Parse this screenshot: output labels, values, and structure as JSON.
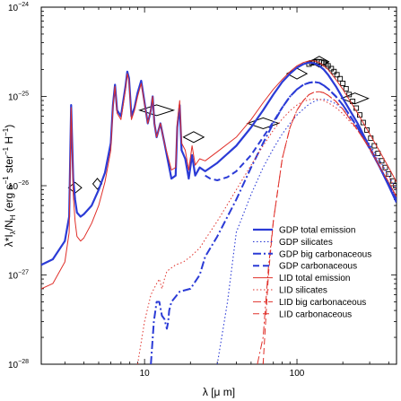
{
  "chart_data": {
    "type": "line",
    "xlabel": "λ [μ m]",
    "ylabel": "λ*I_λ/N_H (erg s⁻¹ ster⁻¹ H⁻¹)",
    "ylabel_parts": {
      "main": "λ*I",
      "sub1": "λ",
      "mid": "/N",
      "sub2": "H",
      "unit": " (erg s",
      "sup1": "−1",
      "unit2": " ster",
      "sup2": "−1",
      "unit3": " H",
      "sup3": "−1",
      "close": ")"
    },
    "xlabel_parts": {
      "main": "λ [μ m]"
    },
    "xscale": "log",
    "yscale": "log",
    "xlim": [
      2.1,
      450
    ],
    "ylim": [
      1e-28,
      1e-24
    ],
    "x_ticks": [
      {
        "value": 10,
        "label": "10"
      },
      {
        "value": 100,
        "label": "100"
      }
    ],
    "y_ticks": [
      {
        "value": 1e-28,
        "base": "10",
        "exp": "−28"
      },
      {
        "value": 1e-27,
        "base": "10",
        "exp": "−27"
      },
      {
        "value": 1e-26,
        "base": "10",
        "exp": "−26"
      },
      {
        "value": 1e-25,
        "base": "10",
        "exp": "−25"
      },
      {
        "value": 1e-24,
        "base": "10",
        "exp": "−24"
      }
    ],
    "legend_position": "bottom-right",
    "series": [
      {
        "name": "GDP total emission",
        "color": "#2b3bd6",
        "style": "solid",
        "width": 2.2,
        "x": [
          2.1,
          2.5,
          3.0,
          3.2,
          3.3,
          3.35,
          3.4,
          3.5,
          3.6,
          3.8,
          4.0,
          4.5,
          5.0,
          5.5,
          6.0,
          6.2,
          6.4,
          6.6,
          7.0,
          7.5,
          7.7,
          7.9,
          8.2,
          8.6,
          9.0,
          9.5,
          10.5,
          11.0,
          11.3,
          11.6,
          12.0,
          12.7,
          13.5,
          15.0,
          16.0,
          16.4,
          17.0,
          17.5,
          18.5,
          19.5,
          20.5,
          21.5,
          23,
          25,
          30,
          40,
          50,
          60,
          70,
          80,
          90,
          100,
          110,
          120,
          130,
          140,
          150,
          160,
          180,
          200,
          250,
          300,
          350,
          400,
          450
        ],
        "y": [
          1.3e-27,
          1.5e-27,
          2.4e-27,
          4.5e-27,
          8e-26,
          3e-26,
          1.2e-26,
          7e-27,
          5e-27,
          4.5e-27,
          4.8e-27,
          6e-27,
          9e-27,
          1.4e-26,
          3e-26,
          8e-26,
          1.35e-25,
          7e-26,
          6e-26,
          1.3e-25,
          1.9e-25,
          1.6e-25,
          6e-26,
          7.5e-26,
          1.1e-25,
          1.5e-25,
          5e-26,
          7e-26,
          1e-25,
          5e-26,
          3.5e-26,
          5e-26,
          3e-26,
          1.2e-26,
          1.3e-26,
          4.5e-26,
          8e-26,
          2.5e-26,
          2e-26,
          1.2e-26,
          2.2e-26,
          1.3e-26,
          1.6e-26,
          1.45e-26,
          1.8e-26,
          2.8e-26,
          4.5e-26,
          7e-26,
          1.05e-25,
          1.45e-25,
          1.8e-25,
          2.1e-25,
          2.3e-25,
          2.4e-25,
          2.35e-25,
          2.2e-25,
          2e-25,
          1.75e-25,
          1.3e-25,
          9.5e-26,
          5e-26,
          2.7e-26,
          1.6e-26,
          1e-26,
          6.5e-27
        ]
      },
      {
        "name": "GDP silicates",
        "color": "#2b3bd6",
        "style": "dotted",
        "width": 1.1,
        "x": [
          30,
          35,
          40,
          50,
          60,
          70,
          80,
          90,
          100,
          110,
          120,
          130,
          140,
          150,
          160,
          180,
          200,
          250,
          300,
          350,
          400,
          450
        ],
        "y": [
          1e-28,
          5e-28,
          3e-27,
          8e-27,
          1.6e-26,
          2.6e-26,
          3.8e-26,
          5e-26,
          6.2e-26,
          7.2e-26,
          8.2e-26,
          8.8e-26,
          9.2e-26,
          9.3e-26,
          9.1e-26,
          8.3e-26,
          7.2e-26,
          4.6e-26,
          2.9e-26,
          1.9e-26,
          1.3e-26,
          9e-27
        ]
      },
      {
        "name": "GDP big carbonaceous",
        "color": "#2b3bd6",
        "style": "dashdot",
        "width": 2,
        "x": [
          11,
          11.5,
          12,
          12.5,
          13,
          13.5,
          14,
          14.3,
          14.5,
          15,
          17,
          20,
          23,
          25,
          30,
          40,
          50,
          60,
          70,
          80,
          90,
          100,
          110,
          120,
          130,
          140,
          150,
          160,
          180,
          200,
          250,
          300,
          350,
          400,
          450
        ],
        "y": [
          1e-28,
          3e-28,
          5e-28,
          5e-28,
          3.5e-28,
          3.2e-28,
          2.5e-28,
          3e-28,
          4e-28,
          5e-28,
          6.5e-28,
          7e-28,
          1e-27,
          1.6e-27,
          2.7e-27,
          7e-27,
          1.6e-26,
          3e-26,
          5e-26,
          7.5e-26,
          1e-25,
          1.2e-25,
          1.35e-25,
          1.42e-25,
          1.45e-25,
          1.42e-25,
          1.33e-25,
          1.22e-25,
          1e-25,
          8e-26,
          4.5e-26,
          2.6e-26,
          1.6e-26,
          1.05e-26,
          7e-27
        ]
      },
      {
        "name": "GDP carbonaceous",
        "color": "#2b3bd6",
        "style": "dashed",
        "width": 2,
        "x": [
          25,
          27,
          30,
          35,
          40,
          50,
          60,
          70,
          80,
          90,
          100,
          110,
          120,
          130,
          140,
          150,
          160,
          180,
          200,
          250,
          300,
          350,
          400,
          450
        ],
        "y": [
          1.3e-26,
          1.2e-26,
          1.15e-26,
          1.25e-26,
          1.45e-26,
          2.2e-26,
          3.5e-26,
          5.2e-26,
          7.5e-26,
          1e-25,
          1.2e-25,
          1.35e-25,
          1.42e-25,
          1.45e-25,
          1.42e-25,
          1.33e-25,
          1.22e-25,
          1e-25,
          8e-26,
          4.5e-26,
          2.6e-26,
          1.6e-26,
          1.05e-26,
          7e-27
        ]
      },
      {
        "name": "LID total emission",
        "color": "#e0302a",
        "style": "solid",
        "width": 1,
        "x": [
          2.1,
          2.5,
          3.0,
          3.2,
          3.3,
          3.35,
          3.4,
          3.5,
          3.6,
          3.8,
          4.0,
          4.5,
          5.0,
          5.5,
          6.0,
          6.2,
          6.4,
          6.6,
          7.0,
          7.5,
          7.7,
          7.9,
          8.2,
          8.6,
          9.0,
          9.5,
          10.5,
          11.0,
          11.3,
          11.6,
          12.0,
          12.7,
          13.5,
          15.0,
          16.0,
          16.4,
          17.0,
          17.5,
          18.5,
          19.5,
          20.5,
          21.5,
          23,
          25,
          30,
          40,
          50,
          60,
          70,
          80,
          90,
          100,
          110,
          120,
          130,
          140,
          150,
          160,
          180,
          200,
          250,
          300,
          350,
          400,
          450
        ],
        "y": [
          7e-28,
          8e-28,
          1.4e-27,
          3e-27,
          7.5e-26,
          2.5e-26,
          8e-27,
          4e-27,
          2.7e-27,
          2.4e-27,
          2.6e-27,
          3.8e-27,
          6e-27,
          1.1e-26,
          2.5e-26,
          7.5e-26,
          1.3e-25,
          6.5e-26,
          5.5e-26,
          1.2e-25,
          1.8e-25,
          1.5e-25,
          5.5e-26,
          7e-26,
          1e-25,
          1.4e-25,
          5e-26,
          7e-26,
          1e-25,
          5e-26,
          3.5e-26,
          5e-26,
          3e-26,
          1.5e-26,
          1.6e-26,
          5e-26,
          9e-26,
          3e-26,
          2.5e-26,
          1.5e-26,
          2.8e-26,
          1.7e-26,
          2e-26,
          1.9e-26,
          2.4e-26,
          3.5e-26,
          5.5e-26,
          8.5e-26,
          1.2e-25,
          1.55e-25,
          1.9e-25,
          2.2e-25,
          2.4e-25,
          2.5e-25,
          2.5e-25,
          2.4e-25,
          2.2e-25,
          2e-25,
          1.55e-25,
          1.2e-25,
          6.5e-26,
          3.8e-26,
          2.4e-26,
          1.6e-26,
          1.1e-26
        ]
      },
      {
        "name": "LID silicates",
        "color": "#e0302a",
        "style": "dotted",
        "width": 1,
        "x": [
          9,
          10,
          11,
          12,
          12.5,
          13,
          13.5,
          14,
          15,
          16,
          18,
          20,
          23,
          25,
          30,
          40,
          50,
          60,
          70,
          80,
          90,
          100,
          110,
          120,
          130,
          140,
          150,
          160,
          180,
          200,
          250,
          300,
          350,
          400,
          450
        ],
        "y": [
          1e-28,
          3e-28,
          6e-28,
          8e-28,
          9e-28,
          7e-28,
          9e-28,
          1.1e-27,
          1.2e-27,
          1.3e-27,
          1.4e-27,
          1.6e-27,
          2e-27,
          2.5e-27,
          4e-27,
          9e-27,
          1.7e-26,
          2.8e-26,
          4.2e-26,
          5.6e-26,
          6.9e-26,
          8e-26,
          8.8e-26,
          9.2e-26,
          9.4e-26,
          9.3e-26,
          9e-26,
          8.5e-26,
          7.5e-26,
          6.4e-26,
          4.2e-26,
          2.7e-26,
          1.8e-26,
          1.25e-26,
          9e-27
        ]
      },
      {
        "name": "LID big carbonaceous",
        "color": "#e0302a",
        "style": "dashdot",
        "width": 1,
        "x": [
          55,
          60,
          65,
          70,
          80,
          90,
          100,
          110,
          120,
          130,
          140,
          150,
          160,
          180,
          200,
          250,
          300,
          350,
          400,
          450
        ],
        "y": [
          1e-28,
          2e-28,
          1.2e-27,
          4e-27,
          2e-26,
          4.5e-26,
          7e-26,
          9e-26,
          1.05e-25,
          1.12e-25,
          1.13e-25,
          1.1e-25,
          1.03e-25,
          8.8e-26,
          7.2e-26,
          4.2e-26,
          2.6e-26,
          1.6e-26,
          1.1e-26,
          7.5e-27
        ]
      },
      {
        "name": "LID carbonaceous",
        "color": "#e0302a",
        "style": "dashed",
        "width": 1,
        "x": [
          60,
          65,
          70,
          80,
          90,
          100,
          110,
          120,
          130,
          140,
          150,
          160,
          180,
          200,
          250,
          300,
          350,
          400,
          450
        ],
        "y": [
          1e-28,
          1e-27,
          4e-27,
          2e-26,
          4.5e-26,
          7e-26,
          9e-26,
          1.05e-25,
          1.12e-25,
          1.13e-25,
          1.1e-25,
          1.03e-25,
          8.8e-26,
          7.2e-26,
          4.2e-26,
          2.6e-26,
          1.6e-26,
          1.1e-26,
          7.5e-27
        ]
      }
    ],
    "observations_diamonds": [
      {
        "x": 3.5,
        "y": 9.5e-27,
        "xerr": [
          3.2,
          3.9
        ]
      },
      {
        "x": 4.9,
        "y": 1.05e-26,
        "xerr": [
          4.8,
          5.0
        ]
      },
      {
        "x": 12.0,
        "y": 7e-26,
        "xerr": [
          9.0,
          15.0
        ]
      },
      {
        "x": 21.0,
        "y": 3.5e-26,
        "xerr": [
          18.0,
          24.5
        ]
      },
      {
        "x": 60.0,
        "y": 5e-26,
        "xerr": [
          47.0,
          75.0
        ]
      },
      {
        "x": 100.0,
        "y": 1.8e-25,
        "xerr": [
          85.0,
          115.0
        ]
      },
      {
        "x": 140.0,
        "y": 2.45e-25,
        "xerr": [
          120.0,
          160.0
        ]
      },
      {
        "x": 240.0,
        "y": 9.5e-26,
        "xerr": [
          200.0,
          300.0
        ]
      }
    ],
    "observations_squares": {
      "x": [
        120,
        125,
        130,
        135,
        140,
        145,
        150,
        155,
        160,
        168,
        175,
        183,
        192,
        200,
        210,
        220,
        232,
        245,
        258,
        272,
        288,
        305,
        322,
        340,
        360,
        380,
        400,
        425,
        445
      ],
      "y": [
        2.3e-25,
        2.38e-25,
        2.42e-25,
        2.45e-25,
        2.45e-25,
        2.42e-25,
        2.37e-25,
        2.3e-25,
        2.2e-25,
        2.05e-25,
        1.9e-25,
        1.75e-25,
        1.58e-25,
        1.4e-25,
        1.22e-25,
        1.05e-25,
        8.8e-26,
        7.4e-26,
        6.2e-26,
        5.1e-26,
        4.2e-26,
        3.4e-26,
        2.8e-26,
        2.3e-26,
        1.9e-26,
        1.6e-26,
        1.35e-26,
        1.13e-26,
        1e-26
      ]
    }
  }
}
